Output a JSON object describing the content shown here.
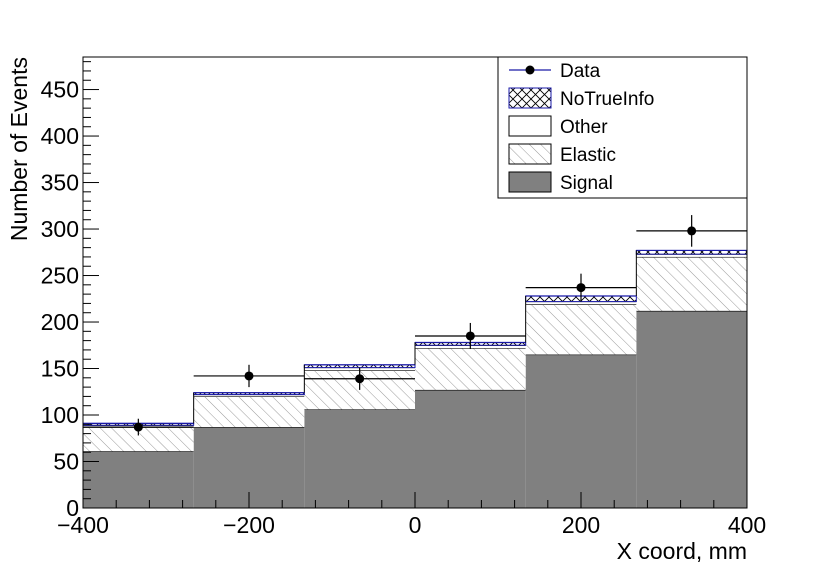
{
  "chart_data": {
    "type": "bar",
    "stacked": true,
    "bin_edges": [
      -400,
      -266.67,
      -133.33,
      0,
      133.33,
      266.67,
      400
    ],
    "series": [
      {
        "name": "Signal",
        "values": [
          61,
          87,
          106,
          127,
          165,
          212
        ],
        "color": "#808080",
        "fill": "solid"
      },
      {
        "name": "Elastic",
        "values": [
          26,
          33,
          42,
          45,
          54,
          58
        ],
        "color": "#808080",
        "fill": "hatched"
      },
      {
        "name": "Other",
        "values": [
          2,
          2,
          3,
          3,
          3,
          3
        ],
        "color": "#ffffff",
        "fill": "hollow"
      },
      {
        "name": "NoTrueInfo",
        "values": [
          2,
          2,
          3,
          3,
          6,
          4
        ],
        "color": "#1a1aa8",
        "fill": "cross-hatched"
      }
    ],
    "data_points": {
      "name": "Data",
      "x": [
        -333.33,
        -200,
        -66.67,
        66.67,
        200,
        333.33
      ],
      "y": [
        87,
        142,
        139,
        185,
        237,
        298
      ],
      "y_err": [
        9,
        12,
        12,
        14,
        15,
        17
      ]
    },
    "xlabel": "X coord, mm",
    "ylabel": "Number of Events",
    "xlim": [
      -400,
      400
    ],
    "ylim": [
      0,
      485
    ],
    "x_ticks": [
      -400,
      -200,
      0,
      200,
      400
    ],
    "x_tick_labels": [
      "−400",
      "−200",
      "0",
      "200",
      "400"
    ],
    "y_ticks": [
      0,
      50,
      100,
      150,
      200,
      250,
      300,
      350,
      400,
      450
    ],
    "y_tick_labels": [
      "0",
      "50",
      "100",
      "150",
      "200",
      "250",
      "300",
      "350",
      "400",
      "450"
    ],
    "legend": {
      "placement": "top-right",
      "entries": [
        "Data",
        "NoTrueInfo",
        "Other",
        "Elastic",
        "Signal"
      ]
    },
    "grid": false
  }
}
